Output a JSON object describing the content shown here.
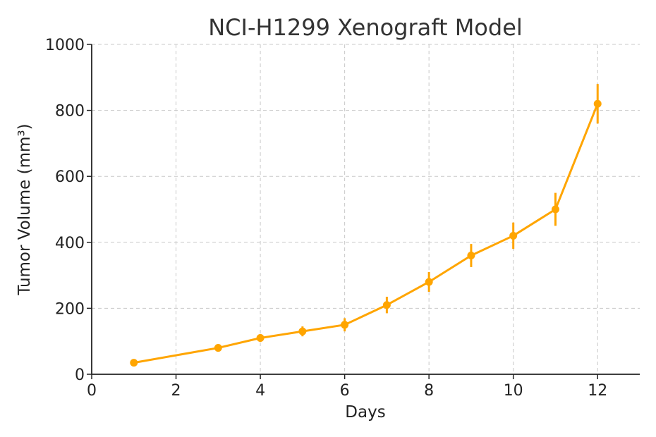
{
  "chart_data": {
    "type": "line",
    "title": "NCI-H1299 Xenograft Model",
    "xlabel": "Days",
    "ylabel": "Tumor Volume (mm³)",
    "xlim": [
      0,
      13
    ],
    "ylim": [
      0,
      1000
    ],
    "xticks": [
      0,
      2,
      4,
      6,
      8,
      10,
      12
    ],
    "yticks": [
      0,
      200,
      400,
      600,
      800,
      1000
    ],
    "grid": true,
    "legend": null,
    "series": [
      {
        "name": "Tumor Volume",
        "color": "#FFA500",
        "x": [
          1,
          3,
          4,
          5,
          6,
          7,
          8,
          9,
          10,
          11,
          12
        ],
        "y": [
          35,
          80,
          110,
          130,
          150,
          210,
          280,
          360,
          420,
          500,
          820
        ],
        "yerr": [
          5,
          10,
          12,
          15,
          20,
          25,
          30,
          35,
          40,
          50,
          60
        ]
      }
    ]
  }
}
